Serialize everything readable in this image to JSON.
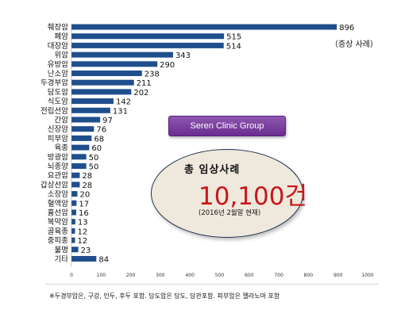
{
  "chart_data": {
    "type": "bar",
    "orientation": "horizontal",
    "categories": [
      "췌장암",
      "폐암",
      "대장암",
      "위암",
      "유방암",
      "난소암",
      "두경부암",
      "담도암",
      "식도암",
      "전립선암",
      "간암",
      "신장암",
      "피부암",
      "육종",
      "방광암",
      "뇌종양",
      "요관암",
      "갑상선암",
      "소장암",
      "혈액암",
      "흉선암",
      "복막암",
      "골육종",
      "중피종",
      "불명",
      "기타"
    ],
    "values": [
      896,
      515,
      514,
      343,
      290,
      238,
      211,
      202,
      142,
      131,
      97,
      76,
      68,
      60,
      50,
      50,
      28,
      28,
      20,
      17,
      16,
      13,
      12,
      12,
      23,
      84
    ],
    "xlim": [
      0,
      1000
    ],
    "xticks": [
      0,
      100,
      200,
      300,
      400,
      500,
      600,
      700,
      800,
      900,
      1000
    ],
    "bar_color": "#1f4e8c",
    "annotation": "（증상 사례）",
    "grid": false
  },
  "clinic_label": "Seren Clinic Group",
  "total": {
    "title": "총 임상사례",
    "number": "10,100건",
    "date": "(2016년 2월말 현재)"
  },
  "footnote": "※두경부암은, 구강, 인두, 후두 포함. 담도암은 담도, 담관포함. 피부암은 멜라노마 포함"
}
